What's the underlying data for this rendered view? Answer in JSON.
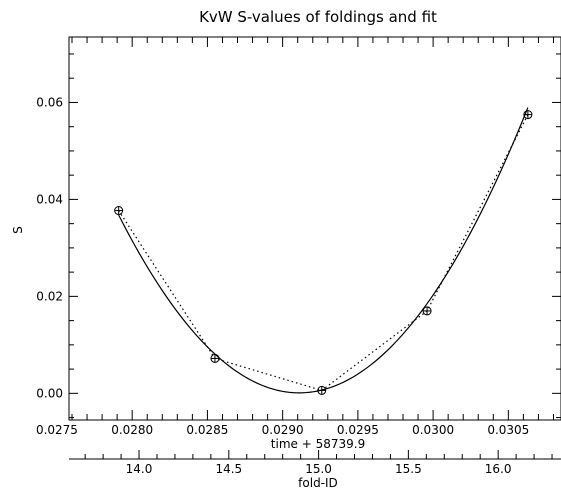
{
  "chart_data": {
    "type": "scatter",
    "title": "KvW S-values of foldings and fit",
    "ylabel": "S",
    "xlabel": "time + 58739.9",
    "x2label": "fold-ID",
    "xlim": [
      0.02758,
      0.03085
    ],
    "ylim": [
      -0.0055,
      0.0735
    ],
    "x2lim": [
      13.61,
      16.35
    ],
    "xticks": [
      "0.0275",
      "0.0280",
      "0.0285",
      "0.0290",
      "0.0295",
      "0.0300",
      "0.0305"
    ],
    "x2ticks": [
      "14.0",
      "14.5",
      "15.0",
      "15.5",
      "16.0"
    ],
    "yticks": [
      "0.00",
      "0.02",
      "0.04",
      "0.06"
    ],
    "grid": false,
    "series": [
      {
        "style": "points-with-dotted-line",
        "marker": "circle-plus",
        "points": [
          {
            "x": 0.02791,
            "y": 0.0377
          },
          {
            "x": 0.02855,
            "y": 0.0072
          },
          {
            "x": 0.02926,
            "y": 0.0006
          },
          {
            "x": 0.02996,
            "y": 0.017
          },
          {
            "x": 0.03063,
            "y": 0.0575
          }
        ]
      },
      {
        "style": "solid-curve",
        "fit": "quadratic",
        "vertex": {
          "x": 0.02911,
          "y": 0.0001
        },
        "x_range": [
          0.02791,
          0.03063
        ]
      }
    ]
  }
}
